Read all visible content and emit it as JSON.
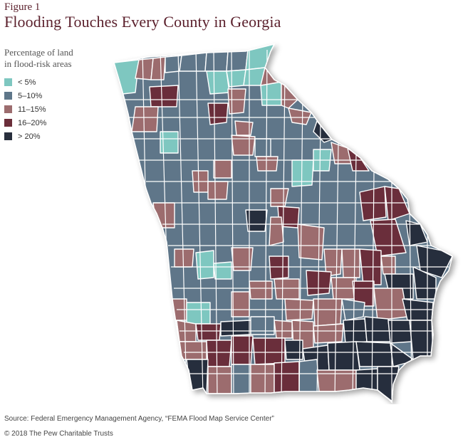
{
  "figure_label": "Figure 1",
  "title": "Flooding Touches Every County in Georgia",
  "legend": {
    "title": "Percentage of land\nin flood-risk areas",
    "items": [
      {
        "label": "< 5%",
        "color": "#7ec7c0"
      },
      {
        "label": "5–10%",
        "color": "#5e7689"
      },
      {
        "label": "11–15%",
        "color": "#9c6c6e"
      },
      {
        "label": "16–20%",
        "color": "#6b2e3a"
      },
      {
        "label": "> 20%",
        "color": "#282f3d"
      }
    ]
  },
  "source": "Source: Federal Emergency Management Agency, “FEMA Flood Map Service Center”",
  "copyright": "© 2018 The Pew Charitable Trusts"
}
